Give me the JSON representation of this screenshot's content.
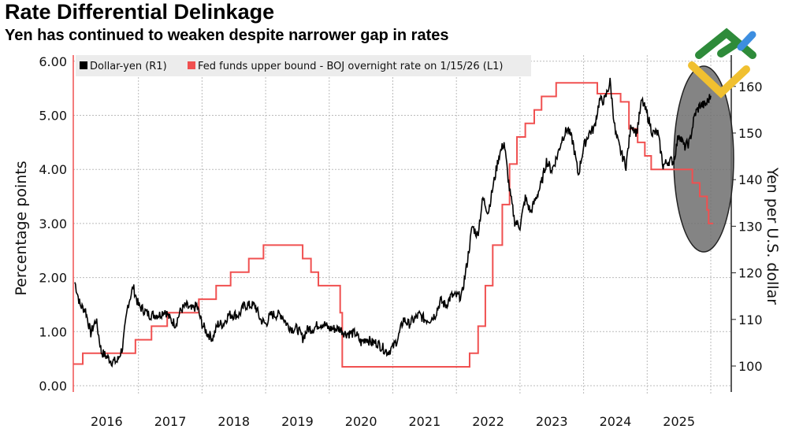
{
  "chart_data": {
    "type": "line",
    "title": "Rate Differential Delinkage",
    "subtitle": "Yen has continued to weaken despite narrower gap in rates",
    "ylabel_left": "Percentage points",
    "ylabel_right": "Yen per U.S. dollar",
    "ylim_left": [
      0,
      6
    ],
    "ylim_right": [
      95,
      165
    ],
    "yticks_left": [
      "0.00",
      "1.00",
      "2.00",
      "3.00",
      "4.00",
      "5.00",
      "6.00"
    ],
    "yticks_right": [
      "100",
      "110",
      "120",
      "130",
      "140",
      "150",
      "160"
    ],
    "xticks": [
      "2016",
      "2017",
      "2018",
      "2019",
      "2020",
      "2021",
      "2022",
      "2023",
      "2024",
      "2025"
    ],
    "grid": true,
    "legend_position": "top-left",
    "series": [
      {
        "name": "Dollar-yen (R1)",
        "axis": "right",
        "color": "#000000",
        "frequency": "monthly",
        "start": "2016-01",
        "values": [
          118,
          113,
          112,
          107,
          110,
          103,
          102,
          101,
          101,
          104,
          113,
          117,
          113,
          112,
          111,
          111,
          111,
          112,
          110,
          109,
          112,
          113,
          112,
          113,
          109,
          107,
          106,
          109,
          109,
          111,
          111,
          111,
          113,
          113,
          113,
          110,
          109,
          111,
          111,
          111,
          109,
          108,
          108,
          106,
          108,
          108,
          109,
          109,
          108,
          108,
          108,
          107,
          107,
          107,
          105,
          106,
          105,
          105,
          104,
          103,
          104,
          106,
          110,
          109,
          110,
          111,
          110,
          110,
          111,
          114,
          113,
          115,
          115,
          115,
          122,
          130,
          128,
          136,
          133,
          139,
          145,
          148,
          138,
          131,
          130,
          136,
          133,
          136,
          139,
          144,
          142,
          145,
          149,
          151,
          148,
          141,
          147,
          150,
          151,
          157,
          157,
          161,
          150,
          146,
          143,
          152,
          150,
          157,
          154,
          150,
          150,
          143,
          144,
          144,
          150,
          147,
          148,
          154,
          156,
          156,
          158
        ]
      },
      {
        "name": "Fed funds upper bound - BOJ overnight rate on 1/15/26 (L1)",
        "axis": "left",
        "color": "#f05050",
        "type": "step",
        "points": [
          [
            "2015-12-20",
            0.4
          ],
          [
            "2016-02-16",
            0.6
          ],
          [
            "2016-12-14",
            0.85
          ],
          [
            "2017-03-15",
            1.1
          ],
          [
            "2017-06-14",
            1.35
          ],
          [
            "2017-12-13",
            1.6
          ],
          [
            "2018-03-21",
            1.85
          ],
          [
            "2018-06-13",
            2.1
          ],
          [
            "2018-09-26",
            2.35
          ],
          [
            "2018-12-19",
            2.6
          ],
          [
            "2019-07-31",
            2.35
          ],
          [
            "2019-09-18",
            2.1
          ],
          [
            "2019-10-30",
            1.85
          ],
          [
            "2020-03-03",
            1.35
          ],
          [
            "2020-03-15",
            0.35
          ],
          [
            "2022-03-16",
            0.6
          ],
          [
            "2022-05-04",
            1.1
          ],
          [
            "2022-06-15",
            1.85
          ],
          [
            "2022-07-27",
            2.6
          ],
          [
            "2022-09-21",
            3.35
          ],
          [
            "2022-11-02",
            4.1
          ],
          [
            "2022-12-14",
            4.6
          ],
          [
            "2023-02-01",
            4.85
          ],
          [
            "2023-03-22",
            5.1
          ],
          [
            "2023-05-03",
            5.35
          ],
          [
            "2023-07-26",
            5.6
          ],
          [
            "2024-03-19",
            5.4
          ],
          [
            "2024-07-31",
            5.25
          ],
          [
            "2024-09-18",
            4.75
          ],
          [
            "2024-11-07",
            4.5
          ],
          [
            "2024-12-18",
            4.25
          ],
          [
            "2025-01-24",
            4.0
          ],
          [
            "2025-09-17",
            3.75
          ],
          [
            "2025-10-29",
            3.5
          ],
          [
            "2025-12-10",
            3.25
          ],
          [
            "2025-12-19",
            3.0
          ],
          [
            "2026-01-15",
            3.0
          ]
        ]
      }
    ],
    "annotation": "gray ellipse highlighting 2025 divergence"
  },
  "logo": "green-yellow-blue logo mark",
  "colors": {
    "fx": "#000000",
    "spread": "#f05050",
    "highlight": "#6e6e6e"
  }
}
